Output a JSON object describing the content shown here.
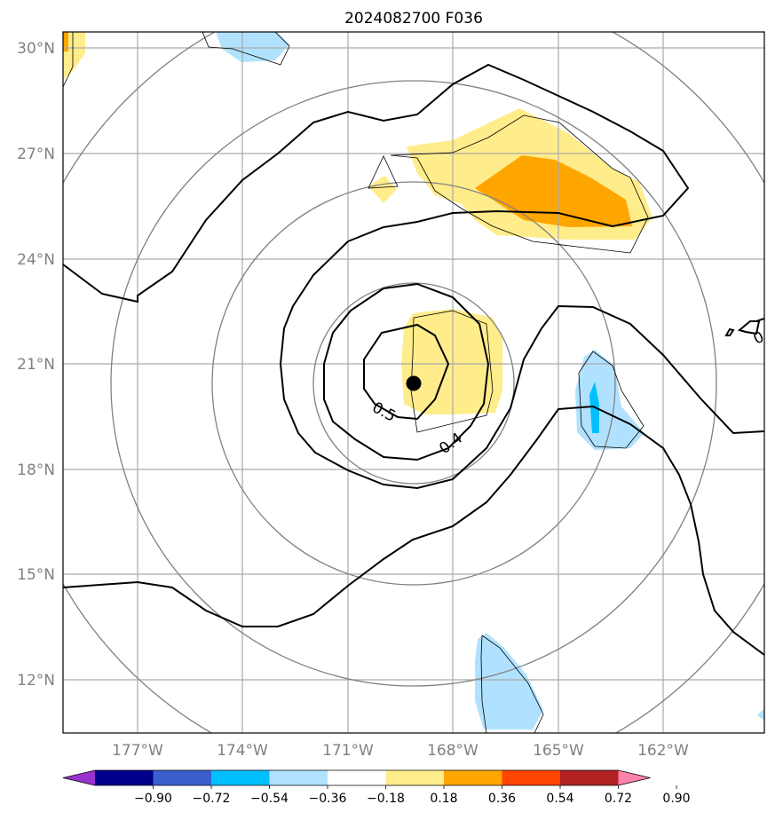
{
  "title": "2024082700 F036",
  "map": {
    "lat_labels": [
      "30°N",
      "27°N",
      "24°N",
      "21°N",
      "18°N",
      "15°N",
      "12°N"
    ],
    "lon_labels": [
      "177°W",
      "174°W",
      "171°W",
      "168°W",
      "165°W",
      "162°W"
    ],
    "lat_range": [
      10.5,
      30.5
    ],
    "lon_range": [
      -179.5,
      -159.5
    ],
    "gridlines": true,
    "storm_center": {
      "lat": 20.5,
      "lon": -169.5,
      "marker": "filled-circle"
    },
    "contour_labels": [
      "0.5",
      "0.4",
      "0"
    ]
  },
  "colorbar": {
    "tick_labels": [
      "−0.90",
      "−0.72",
      "−0.54",
      "−0.36",
      "−0.18",
      "0.18",
      "0.36",
      "0.54",
      "0.72",
      "0.90"
    ],
    "colors": [
      "#9932cc",
      "#00008b",
      "#3a5fcd",
      "#00bfff",
      "#b0e2ff",
      "#ffffff",
      "#ffec8b",
      "#ffa500",
      "#ff4500",
      "#b22222",
      "#ff82ab"
    ],
    "extend": "both"
  }
}
